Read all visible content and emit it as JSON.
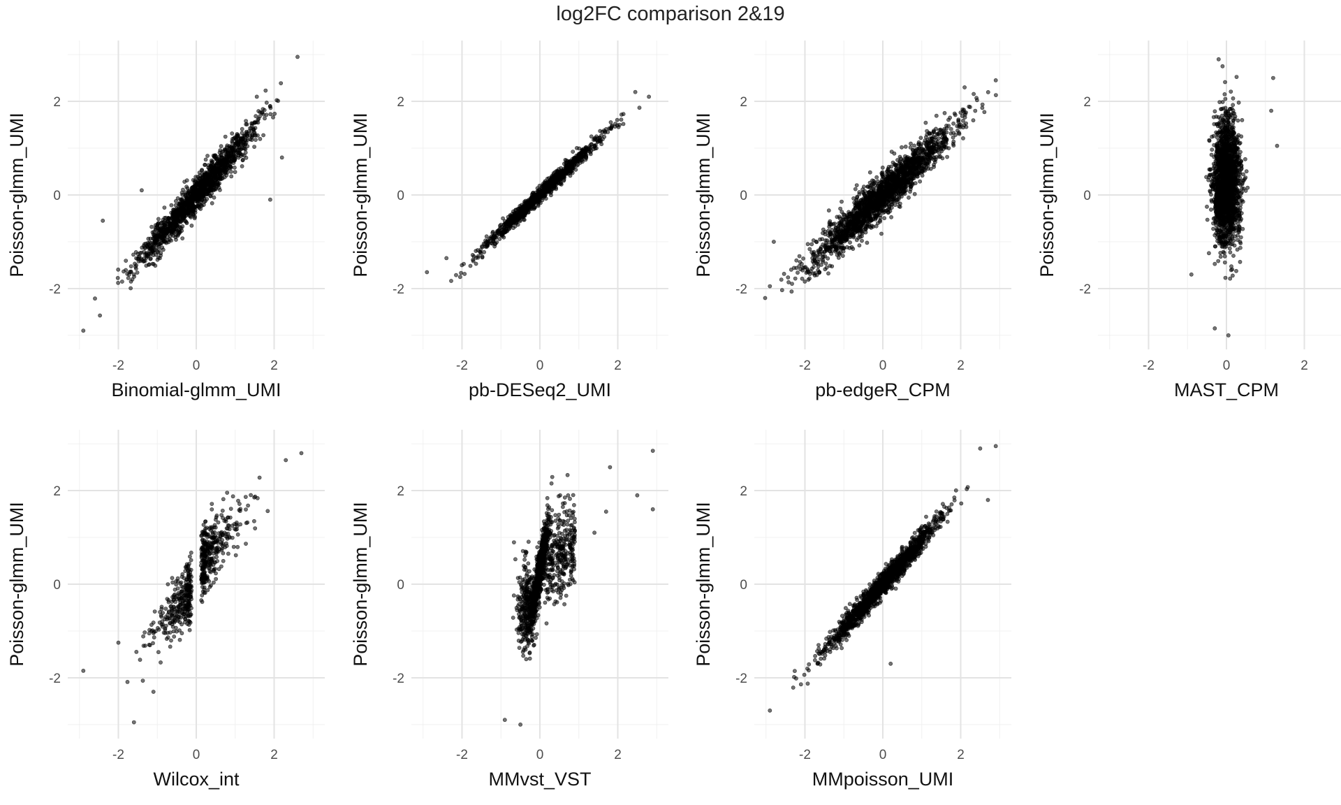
{
  "figure": {
    "title": "log2FC comparison 2&19"
  },
  "chart_data": [
    {
      "type": "scatter",
      "xlabel": "Binomial-glmm_UMI",
      "ylabel": "Poisson-glmm_UMI",
      "xlim": [
        -3.3,
        3.3
      ],
      "ylim": [
        -3.3,
        3.3
      ],
      "xticks": [
        "-2",
        "0",
        "2"
      ],
      "yticks": [
        "-2",
        "0",
        "2"
      ],
      "grid": true,
      "pattern": {
        "slope": 0.95,
        "sd_x": 0.75,
        "noise": 0.18,
        "n": 1500,
        "seed": 11,
        "extreme": [
          [
            -2.9,
            -2.9
          ],
          [
            -2.4,
            -0.55
          ],
          [
            2.2,
            0.8
          ],
          [
            2.6,
            2.95
          ],
          [
            1.9,
            -0.1
          ],
          [
            -1.4,
            0.1
          ]
        ]
      }
    },
    {
      "type": "scatter",
      "xlabel": "pb-DESeq2_UMI",
      "ylabel": "Poisson-glmm_UMI",
      "xlim": [
        -3.3,
        3.3
      ],
      "ylim": [
        -3.3,
        3.3
      ],
      "xticks": [
        "-2",
        "0",
        "2"
      ],
      "yticks": [
        "-2",
        "0",
        "2"
      ],
      "grid": true,
      "pattern": {
        "slope": 0.78,
        "sd_x": 0.75,
        "noise": 0.08,
        "n": 1100,
        "seed": 23,
        "extreme": [
          [
            -2.9,
            -1.65
          ],
          [
            -2.4,
            -1.35
          ],
          [
            2.8,
            2.1
          ],
          [
            2.45,
            2.2
          ]
        ]
      }
    },
    {
      "type": "scatter",
      "xlabel": "pb-edgeR_CPM",
      "ylabel": "Poisson-glmm_UMI",
      "xlim": [
        -3.3,
        3.3
      ],
      "ylim": [
        -3.3,
        3.3
      ],
      "xticks": [
        "-2",
        "0",
        "2"
      ],
      "yticks": [
        "-2",
        "0",
        "2"
      ],
      "grid": true,
      "pattern": {
        "slope": 0.78,
        "sd_x": 0.9,
        "noise": 0.22,
        "n": 2000,
        "seed": 37,
        "extreme": [
          [
            -2.9,
            -1.95
          ],
          [
            -2.8,
            -1.0
          ],
          [
            2.9,
            2.45
          ],
          [
            2.1,
            2.3
          ]
        ]
      }
    },
    {
      "type": "scatter",
      "xlabel": "MAST_CPM",
      "ylabel": "Poisson-glmm_UMI",
      "xlim": [
        -3.3,
        3.3
      ],
      "ylim": [
        -3.3,
        3.3
      ],
      "xticks": [
        "-2",
        "0",
        "2"
      ],
      "yticks": [
        "-2",
        "0",
        "2"
      ],
      "grid": true,
      "pattern": {
        "mode": "vertical",
        "sd_x": 0.17,
        "sd_y": 0.65,
        "mean_y": 0.25,
        "n": 2000,
        "seed": 51,
        "extreme": [
          [
            -0.2,
            2.9
          ],
          [
            -0.1,
            2.75
          ],
          [
            1.2,
            2.5
          ],
          [
            1.3,
            1.05
          ],
          [
            1.15,
            1.8
          ],
          [
            -0.3,
            -2.85
          ],
          [
            0.05,
            -3.0
          ],
          [
            -0.9,
            -1.7
          ]
        ]
      }
    },
    {
      "type": "scatter",
      "xlabel": "Wilcox_int",
      "ylabel": "Poisson-glmm_UMI",
      "xlim": [
        -3.3,
        3.3
      ],
      "ylim": [
        -3.3,
        3.3
      ],
      "xticks": [
        "-2",
        "0",
        "2"
      ],
      "yticks": [
        "-2",
        "0",
        "2"
      ],
      "grid": true,
      "pattern": {
        "mode": "gap",
        "slope": 0.95,
        "sd_x": 0.55,
        "noise": 0.32,
        "n": 650,
        "seed": 67,
        "extreme": [
          [
            -2.9,
            -1.85
          ],
          [
            -2.0,
            -1.25
          ],
          [
            -1.6,
            -2.95
          ],
          [
            2.7,
            2.8
          ],
          [
            2.3,
            2.65
          ],
          [
            -1.1,
            -2.3
          ]
        ]
      }
    },
    {
      "type": "scatter",
      "xlabel": "MMvst_VST",
      "ylabel": "Poisson-glmm_UMI",
      "xlim": [
        -3.3,
        3.3
      ],
      "ylim": [
        -3.3,
        3.3
      ],
      "xticks": [
        "-2",
        "0",
        "2"
      ],
      "yticks": [
        "-2",
        "0",
        "2"
      ],
      "grid": true,
      "pattern": {
        "mode": "steep",
        "n": 1400,
        "seed": 79,
        "extreme": [
          [
            2.9,
            2.85
          ],
          [
            2.9,
            1.6
          ],
          [
            2.5,
            1.9
          ],
          [
            1.8,
            2.5
          ],
          [
            1.4,
            1.1
          ],
          [
            -0.9,
            -2.9
          ],
          [
            -0.5,
            -3.0
          ],
          [
            1.7,
            1.55
          ]
        ]
      }
    },
    {
      "type": "scatter",
      "xlabel": "MMpoisson_UMI",
      "ylabel": "Poisson-glmm_UMI",
      "xlim": [
        -3.3,
        3.3
      ],
      "ylim": [
        -3.3,
        3.3
      ],
      "xticks": [
        "-2",
        "0",
        "2"
      ],
      "yticks": [
        "-2",
        "0",
        "2"
      ],
      "grid": true,
      "pattern": {
        "slope": 0.95,
        "sd_x": 0.72,
        "noise": 0.12,
        "n": 1600,
        "seed": 91,
        "extreme": [
          [
            -2.9,
            -2.7
          ],
          [
            2.9,
            2.95
          ],
          [
            2.5,
            2.9
          ],
          [
            0.2,
            -1.7
          ],
          [
            2.7,
            1.8
          ]
        ]
      }
    }
  ]
}
